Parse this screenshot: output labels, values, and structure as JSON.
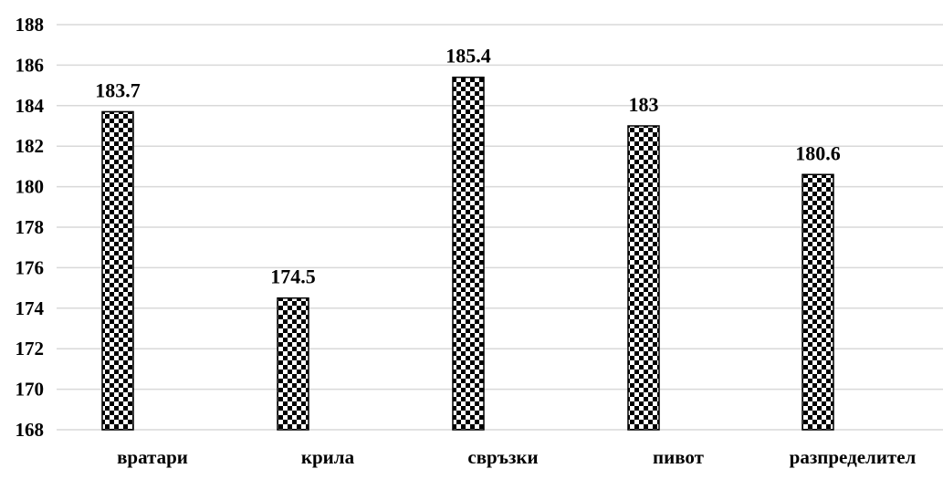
{
  "chart_data": {
    "type": "bar",
    "title": "",
    "xlabel": "",
    "ylabel": "",
    "categories": [
      "вратари",
      "крила",
      "свръзки",
      "пивот",
      "разпределител"
    ],
    "values": [
      183.7,
      174.5,
      185.4,
      183,
      180.6
    ],
    "value_labels": [
      "183.7",
      "174.5",
      "185.4",
      "183",
      "180.6"
    ],
    "ylim": [
      168,
      188
    ],
    "yticks": [
      168,
      170,
      172,
      174,
      176,
      178,
      180,
      182,
      184,
      186,
      188
    ],
    "grid": true,
    "legend": "none",
    "bar_fill": "black-white checkerboard pattern",
    "colors": {
      "bar_dark": "#000000",
      "bar_light": "#ffffff",
      "gridline": "#d9d9d9",
      "text": "#000000"
    }
  }
}
